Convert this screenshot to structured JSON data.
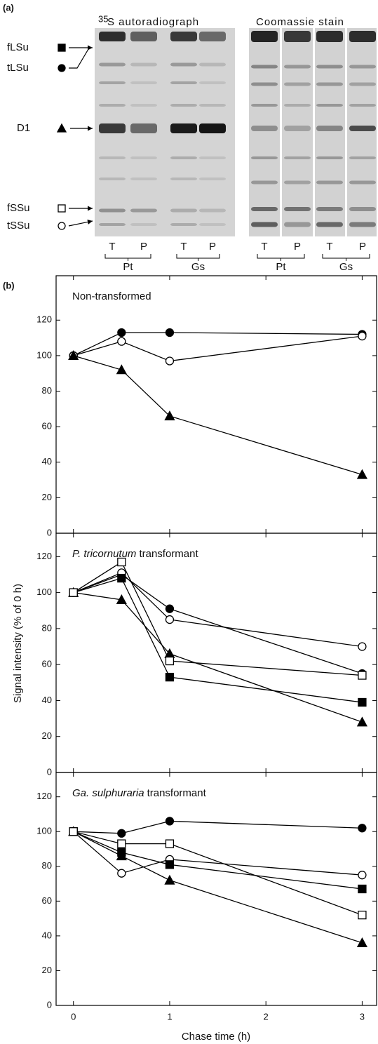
{
  "panel_a": {
    "label": "(a)",
    "autorad_sup": "35",
    "autorad_title": "S autoradiograph",
    "coomassie_title": "Coomassie stain",
    "bands": [
      "fLSu",
      "tLSu",
      "D1",
      "fSSu",
      "tSSu"
    ],
    "lanes": [
      "T",
      "P",
      "T",
      "P",
      "T",
      "P",
      "T",
      "P"
    ],
    "groups": [
      "Pt",
      "Gs",
      "Pt",
      "Gs"
    ]
  },
  "panel_b": {
    "label": "(b)",
    "ylabel": "Signal intensity (% of 0 h)",
    "xlabel": "Chase time (h)"
  },
  "chart_data": [
    {
      "type": "line",
      "title": {
        "italic": "",
        "text": "Non-transformed"
      },
      "x": [
        0,
        0.5,
        1,
        3
      ],
      "xlim": [
        -0.18,
        3.15
      ],
      "xticks": [
        0,
        1,
        2,
        3
      ],
      "xtick_labels": false,
      "ylim": [
        0,
        145
      ],
      "yticks": [
        0,
        20,
        40,
        60,
        80,
        100,
        120
      ],
      "color": "#000000",
      "series": [
        {
          "marker": "filled-circle",
          "values": [
            100,
            113,
            113,
            112
          ]
        },
        {
          "marker": "open-circle",
          "values": [
            100,
            108,
            97,
            111
          ]
        },
        {
          "marker": "filled-triangle",
          "values": [
            100,
            92,
            66,
            33
          ]
        }
      ]
    },
    {
      "type": "line",
      "title": {
        "italic": "P. tricornutum",
        "text": "transformant"
      },
      "x": [
        0,
        0.5,
        1,
        3
      ],
      "xlim": [
        -0.18,
        3.15
      ],
      "xticks": [
        0,
        1,
        2,
        3
      ],
      "xtick_labels": false,
      "ylim": [
        0,
        133
      ],
      "yticks": [
        0,
        20,
        40,
        60,
        80,
        100,
        120
      ],
      "color": "#000000",
      "series": [
        {
          "marker": "filled-circle",
          "values": [
            100,
            110,
            91,
            55
          ]
        },
        {
          "marker": "open-circle",
          "values": [
            100,
            111,
            85,
            70
          ]
        },
        {
          "marker": "filled-triangle",
          "values": [
            100,
            96,
            66,
            28
          ]
        },
        {
          "marker": "filled-square",
          "values": [
            100,
            108,
            53,
            39
          ]
        },
        {
          "marker": "open-square",
          "values": [
            100,
            117,
            62,
            54
          ]
        }
      ]
    },
    {
      "type": "line",
      "title": {
        "italic": "Ga. sulphuraria",
        "text": "transformant"
      },
      "x": [
        0,
        0.5,
        1,
        3
      ],
      "xlim": [
        -0.18,
        3.15
      ],
      "xticks": [
        0,
        1,
        2,
        3
      ],
      "xtick_labels": true,
      "ylim": [
        0,
        134
      ],
      "yticks": [
        0,
        20,
        40,
        60,
        80,
        100,
        120
      ],
      "color": "#000000",
      "series": [
        {
          "marker": "filled-circle",
          "values": [
            100,
            99,
            106,
            102
          ]
        },
        {
          "marker": "open-circle",
          "values": [
            100,
            76,
            84,
            75
          ]
        },
        {
          "marker": "filled-triangle",
          "values": [
            100,
            86,
            72,
            36
          ]
        },
        {
          "marker": "filled-square",
          "values": [
            100,
            88,
            81,
            67
          ]
        },
        {
          "marker": "open-square",
          "values": [
            100,
            93,
            93,
            52
          ]
        }
      ]
    }
  ]
}
